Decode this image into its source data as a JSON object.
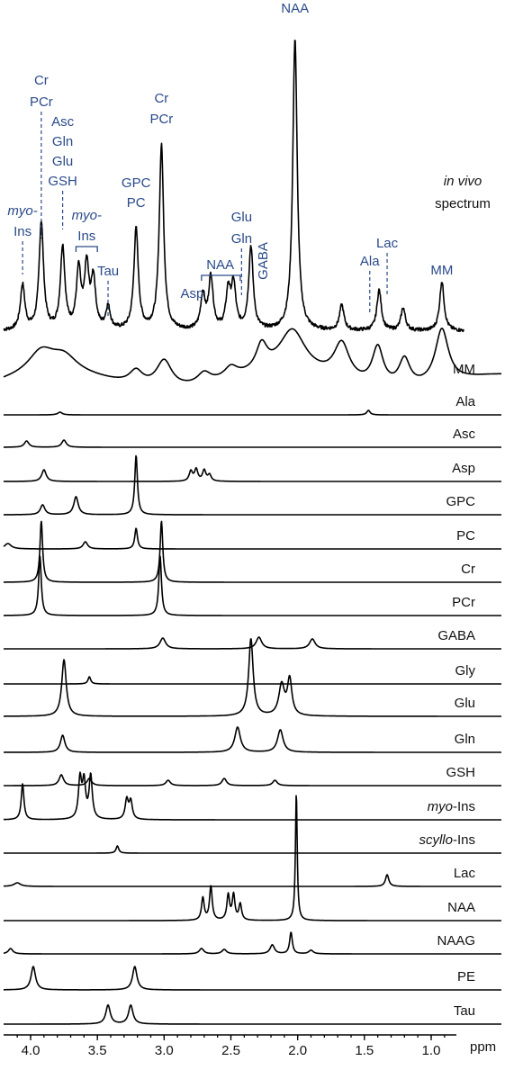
{
  "chart_data": {
    "type": "line",
    "x_unit": "ppm",
    "x_reversed": true,
    "xlim": [
      4.25,
      0.6
    ],
    "x_ticks": [
      "4.0",
      "3.5",
      "3.0",
      "2.5",
      "2.0",
      "1.5",
      "1.0"
    ],
    "x_tick_values": [
      4.0,
      3.5,
      3.0,
      2.5,
      2.0,
      1.5,
      1.0
    ],
    "label_color": "#2a4a8a",
    "trace_color": "#000000",
    "invivo_label": {
      "italic": "in vivo",
      "text": "spectrum"
    },
    "invivo_peaks": [
      {
        "ppm": 4.06,
        "height": 50
      },
      {
        "ppm": 3.92,
        "height": 120
      },
      {
        "ppm": 3.76,
        "height": 92
      },
      {
        "ppm": 3.64,
        "height": 65
      },
      {
        "ppm": 3.58,
        "height": 68
      },
      {
        "ppm": 3.53,
        "height": 55
      },
      {
        "ppm": 3.42,
        "height": 25
      },
      {
        "ppm": 3.21,
        "height": 112
      },
      {
        "ppm": 3.02,
        "height": 205
      },
      {
        "ppm": 2.71,
        "height": 38
      },
      {
        "ppm": 2.65,
        "height": 58
      },
      {
        "ppm": 2.52,
        "height": 42
      },
      {
        "ppm": 2.48,
        "height": 48
      },
      {
        "ppm": 2.35,
        "height": 92
      },
      {
        "ppm": 2.02,
        "height": 325
      },
      {
        "ppm": 1.67,
        "height": 28
      },
      {
        "ppm": 1.39,
        "height": 45
      },
      {
        "ppm": 1.21,
        "height": 25
      },
      {
        "ppm": 0.92,
        "height": 55
      }
    ],
    "peak_annotations": [
      {
        "lines": [
          "NAA"
        ],
        "ppm": 2.02,
        "dashed": false
      },
      {
        "lines": [
          "Cr",
          "PCr"
        ],
        "ppm": 3.92,
        "dashed": true
      },
      {
        "lines": [
          "Asc",
          "Gln",
          "Glu",
          "GSH"
        ],
        "ppm": 3.76,
        "dashed": true
      },
      {
        "lines": [
          "myo-",
          "Ins"
        ],
        "ppm": 4.06,
        "dashed": true,
        "italic_first": true
      },
      {
        "lines": [
          "myo-",
          "Ins"
        ],
        "ppm": 3.58,
        "dashed": false,
        "italic_first": true,
        "bracket": [
          3.66,
          3.5
        ]
      },
      {
        "lines": [
          "Tau"
        ],
        "ppm": 3.42,
        "dashed": true
      },
      {
        "lines": [
          "GPC",
          "PC"
        ],
        "ppm": 3.21,
        "dashed": false
      },
      {
        "lines": [
          "Cr",
          "PCr"
        ],
        "ppm": 3.02,
        "dashed": false
      },
      {
        "lines": [
          "Asp"
        ],
        "ppm": 2.79,
        "dashed": false
      },
      {
        "lines": [
          "NAA"
        ],
        "ppm": 2.58,
        "dashed": false,
        "bracket": [
          2.72,
          2.43
        ]
      },
      {
        "lines": [
          "Glu",
          "Gln"
        ],
        "ppm": 2.42,
        "dashed": true
      },
      {
        "lines": [
          "GABA"
        ],
        "ppm": 2.26,
        "dashed": false,
        "vertical": true
      },
      {
        "lines": [
          "Ala"
        ],
        "ppm": 1.46,
        "dashed": true
      },
      {
        "lines": [
          "Lac"
        ],
        "ppm": 1.33,
        "dashed": true
      },
      {
        "lines": [
          "MM"
        ],
        "ppm": 0.92,
        "dashed": false
      }
    ],
    "series": [
      {
        "name": "MM",
        "baseline_offset": 0,
        "peaks": [
          {
            "ppm": 3.92,
            "height": 25,
            "width": 0.12
          },
          {
            "ppm": 3.75,
            "height": 18,
            "width": 0.12
          },
          {
            "ppm": 3.21,
            "height": 15,
            "width": 0.06
          },
          {
            "ppm": 3.0,
            "height": 30,
            "width": 0.07
          },
          {
            "ppm": 2.7,
            "height": 12,
            "width": 0.06
          },
          {
            "ppm": 2.5,
            "height": 12,
            "width": 0.06
          },
          {
            "ppm": 2.27,
            "height": 28,
            "width": 0.05
          },
          {
            "ppm": 2.04,
            "height": 48,
            "width": 0.12
          },
          {
            "ppm": 1.67,
            "height": 40,
            "width": 0.07
          },
          {
            "ppm": 1.4,
            "height": 42,
            "width": 0.05
          },
          {
            "ppm": 1.2,
            "height": 30,
            "width": 0.05
          },
          {
            "ppm": 0.92,
            "height": 60,
            "width": 0.06
          }
        ]
      },
      {
        "name": "Ala",
        "peaks": [
          {
            "ppm": 3.78,
            "height": 3,
            "width": 0.02
          },
          {
            "ppm": 1.47,
            "height": 5,
            "width": 0.015
          }
        ]
      },
      {
        "name": "Asc",
        "peaks": [
          {
            "ppm": 4.03,
            "height": 7,
            "width": 0.02
          },
          {
            "ppm": 3.75,
            "height": 8,
            "width": 0.02
          }
        ]
      },
      {
        "name": "Asp",
        "peaks": [
          {
            "ppm": 3.9,
            "height": 13,
            "width": 0.02
          },
          {
            "ppm": 2.8,
            "height": 11,
            "width": 0.015
          },
          {
            "ppm": 2.76,
            "height": 13,
            "width": 0.015
          },
          {
            "ppm": 2.7,
            "height": 12,
            "width": 0.015
          },
          {
            "ppm": 2.66,
            "height": 7,
            "width": 0.015
          }
        ]
      },
      {
        "name": "GPC",
        "peaks": [
          {
            "ppm": 3.91,
            "height": 11,
            "width": 0.02
          },
          {
            "ppm": 3.66,
            "height": 20,
            "width": 0.02
          },
          {
            "ppm": 3.21,
            "height": 66,
            "width": 0.012
          }
        ]
      },
      {
        "name": "PC",
        "peaks": [
          {
            "ppm": 4.17,
            "height": 6,
            "width": 0.03
          },
          {
            "ppm": 3.59,
            "height": 8,
            "width": 0.02
          },
          {
            "ppm": 3.21,
            "height": 23,
            "width": 0.012
          }
        ]
      },
      {
        "name": "Cr",
        "peaks": [
          {
            "ppm": 3.92,
            "height": 68,
            "width": 0.012
          },
          {
            "ppm": 3.02,
            "height": 68,
            "width": 0.012
          }
        ]
      },
      {
        "name": "PCr",
        "peaks": [
          {
            "ppm": 3.93,
            "height": 66,
            "width": 0.012
          },
          {
            "ppm": 3.03,
            "height": 66,
            "width": 0.012
          }
        ]
      },
      {
        "name": "GABA",
        "peaks": [
          {
            "ppm": 3.01,
            "height": 12,
            "width": 0.025
          },
          {
            "ppm": 2.29,
            "height": 13,
            "width": 0.025
          },
          {
            "ppm": 1.89,
            "height": 11,
            "width": 0.025
          }
        ]
      },
      {
        "name": "Gly",
        "peaks": [
          {
            "ppm": 3.56,
            "height": 8,
            "width": 0.012
          }
        ]
      },
      {
        "name": "Glu",
        "peaks": [
          {
            "ppm": 3.75,
            "height": 63,
            "width": 0.02
          },
          {
            "ppm": 2.35,
            "height": 86,
            "width": 0.02
          },
          {
            "ppm": 2.12,
            "height": 34,
            "width": 0.025
          },
          {
            "ppm": 2.06,
            "height": 40,
            "width": 0.02
          }
        ]
      },
      {
        "name": "Gln",
        "peaks": [
          {
            "ppm": 3.76,
            "height": 19,
            "width": 0.02
          },
          {
            "ppm": 2.45,
            "height": 28,
            "width": 0.025
          },
          {
            "ppm": 2.13,
            "height": 25,
            "width": 0.025
          }
        ]
      },
      {
        "name": "GSH",
        "peaks": [
          {
            "ppm": 3.77,
            "height": 12,
            "width": 0.02
          },
          {
            "ppm": 3.56,
            "height": 8,
            "width": 0.02
          },
          {
            "ppm": 2.97,
            "height": 6,
            "width": 0.02
          },
          {
            "ppm": 2.55,
            "height": 8,
            "width": 0.02
          },
          {
            "ppm": 2.17,
            "height": 6,
            "width": 0.02
          }
        ]
      },
      {
        "name": "myo-Ins",
        "italic_part": "myo",
        "rest_part": "-Ins",
        "peaks": [
          {
            "ppm": 4.06,
            "height": 40,
            "width": 0.012
          },
          {
            "ppm": 3.63,
            "height": 44,
            "width": 0.014
          },
          {
            "ppm": 3.6,
            "height": 40,
            "width": 0.014
          },
          {
            "ppm": 3.55,
            "height": 48,
            "width": 0.014
          },
          {
            "ppm": 3.28,
            "height": 22,
            "width": 0.014
          },
          {
            "ppm": 3.25,
            "height": 20,
            "width": 0.014
          }
        ]
      },
      {
        "name": "scyllo-Ins",
        "italic_part": "scyllo",
        "rest_part": "-Ins",
        "peaks": [
          {
            "ppm": 3.35,
            "height": 8,
            "width": 0.012
          }
        ]
      },
      {
        "name": "Lac",
        "peaks": [
          {
            "ppm": 4.1,
            "height": 4,
            "width": 0.03
          },
          {
            "ppm": 1.33,
            "height": 13,
            "width": 0.015
          }
        ]
      },
      {
        "name": "NAA",
        "peaks": [
          {
            "ppm": 2.01,
            "height": 142,
            "width": 0.008
          },
          {
            "ppm": 2.71,
            "height": 25,
            "width": 0.012
          },
          {
            "ppm": 2.65,
            "height": 38,
            "width": 0.012
          },
          {
            "ppm": 2.52,
            "height": 28,
            "width": 0.012
          },
          {
            "ppm": 2.48,
            "height": 28,
            "width": 0.012
          },
          {
            "ppm": 2.43,
            "height": 18,
            "width": 0.012
          }
        ]
      },
      {
        "name": "NAAG",
        "peaks": [
          {
            "ppm": 4.15,
            "height": 6,
            "width": 0.02
          },
          {
            "ppm": 2.72,
            "height": 6,
            "width": 0.02
          },
          {
            "ppm": 2.55,
            "height": 5,
            "width": 0.02
          },
          {
            "ppm": 2.19,
            "height": 10,
            "width": 0.02
          },
          {
            "ppm": 2.05,
            "height": 24,
            "width": 0.012
          },
          {
            "ppm": 1.9,
            "height": 4,
            "width": 0.02
          }
        ]
      },
      {
        "name": "PE",
        "peaks": [
          {
            "ppm": 3.98,
            "height": 26,
            "width": 0.02
          },
          {
            "ppm": 3.22,
            "height": 26,
            "width": 0.02
          }
        ]
      },
      {
        "name": "Tau",
        "peaks": [
          {
            "ppm": 3.42,
            "height": 21,
            "width": 0.02
          },
          {
            "ppm": 3.25,
            "height": 21,
            "width": 0.02
          }
        ]
      }
    ]
  }
}
